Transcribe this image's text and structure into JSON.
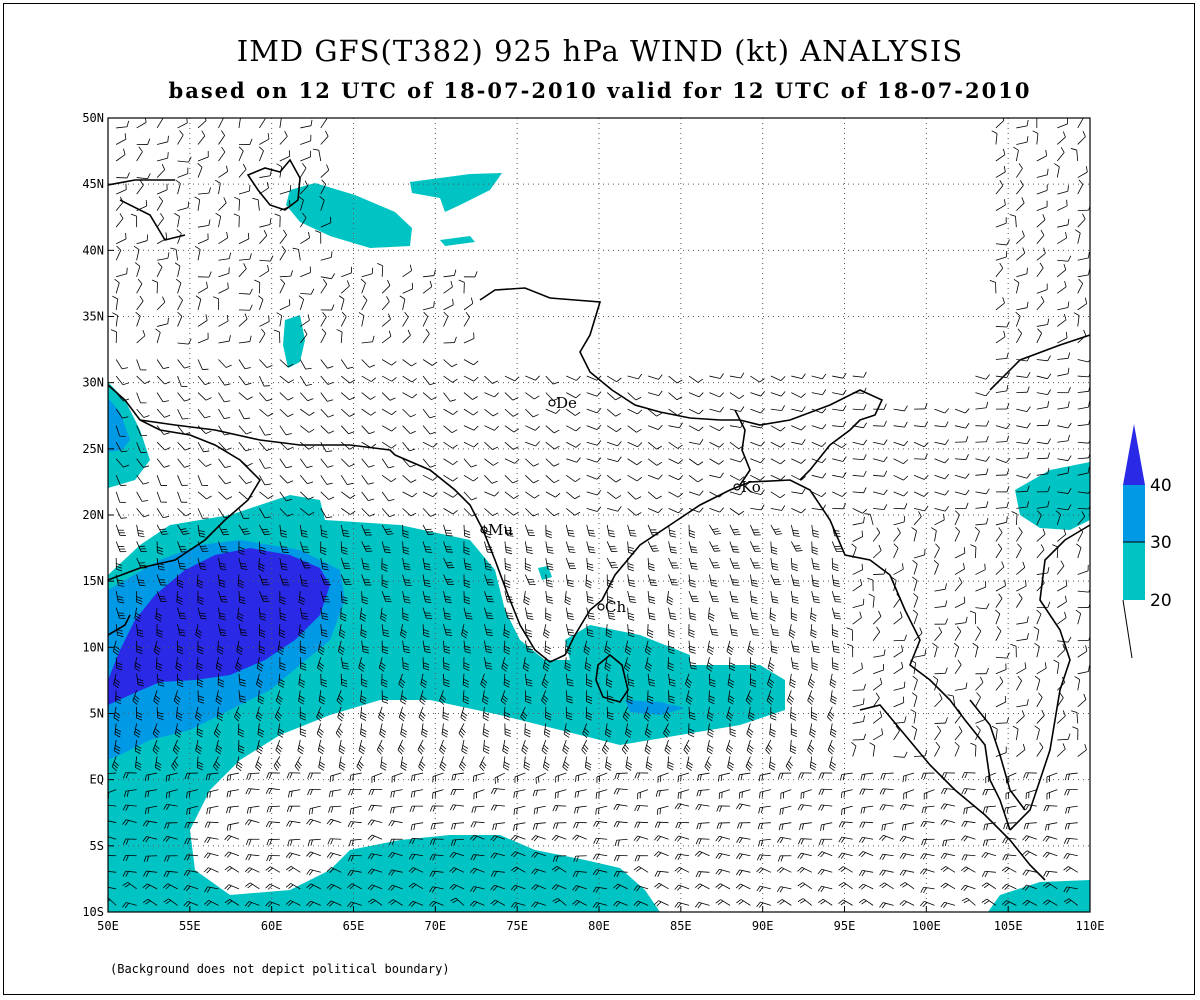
{
  "title": "IMD GFS(T382) 925 hPa WIND (kt) ANALYSIS",
  "subtitle": "based on 12 UTC of 18-07-2010 valid for 12 UTC of 18-07-2010",
  "footnote": "(Background does not depict political boundary)",
  "map": {
    "lon_range": [
      50,
      110
    ],
    "lat_range": [
      -10,
      50
    ],
    "x_ticks": [
      "50E",
      "55E",
      "60E",
      "65E",
      "70E",
      "75E",
      "80E",
      "85E",
      "90E",
      "95E",
      "100E",
      "105E",
      "110E"
    ],
    "y_ticks": [
      "10S",
      "5S",
      "EQ",
      "5N",
      "10N",
      "15N",
      "20N",
      "25N",
      "30N",
      "35N",
      "40N",
      "45N",
      "50N"
    ],
    "grid": "dotted"
  },
  "cities": [
    {
      "code": "De",
      "lon": 77.2,
      "lat": 28.6
    },
    {
      "code": "Ko",
      "lon": 88.4,
      "lat": 22.6
    },
    {
      "code": "Mu",
      "lon": 72.8,
      "lat": 19.1
    },
    {
      "code": "Ch",
      "lon": 80.2,
      "lat": 13.1
    }
  ],
  "legend": {
    "labels": [
      "40",
      "30",
      "20"
    ],
    "bins": [
      {
        "min": 20,
        "max": 30,
        "color": "#00c4c4"
      },
      {
        "min": 30,
        "max": 40,
        "color": "#0099e6"
      },
      {
        "min": 40,
        "max": null,
        "color": "#2a2ae6"
      }
    ]
  },
  "colors": {
    "shade_20": "#00c4c4",
    "shade_30": "#0099e6",
    "shade_40": "#2a2ae6",
    "coast": "#000000"
  }
}
